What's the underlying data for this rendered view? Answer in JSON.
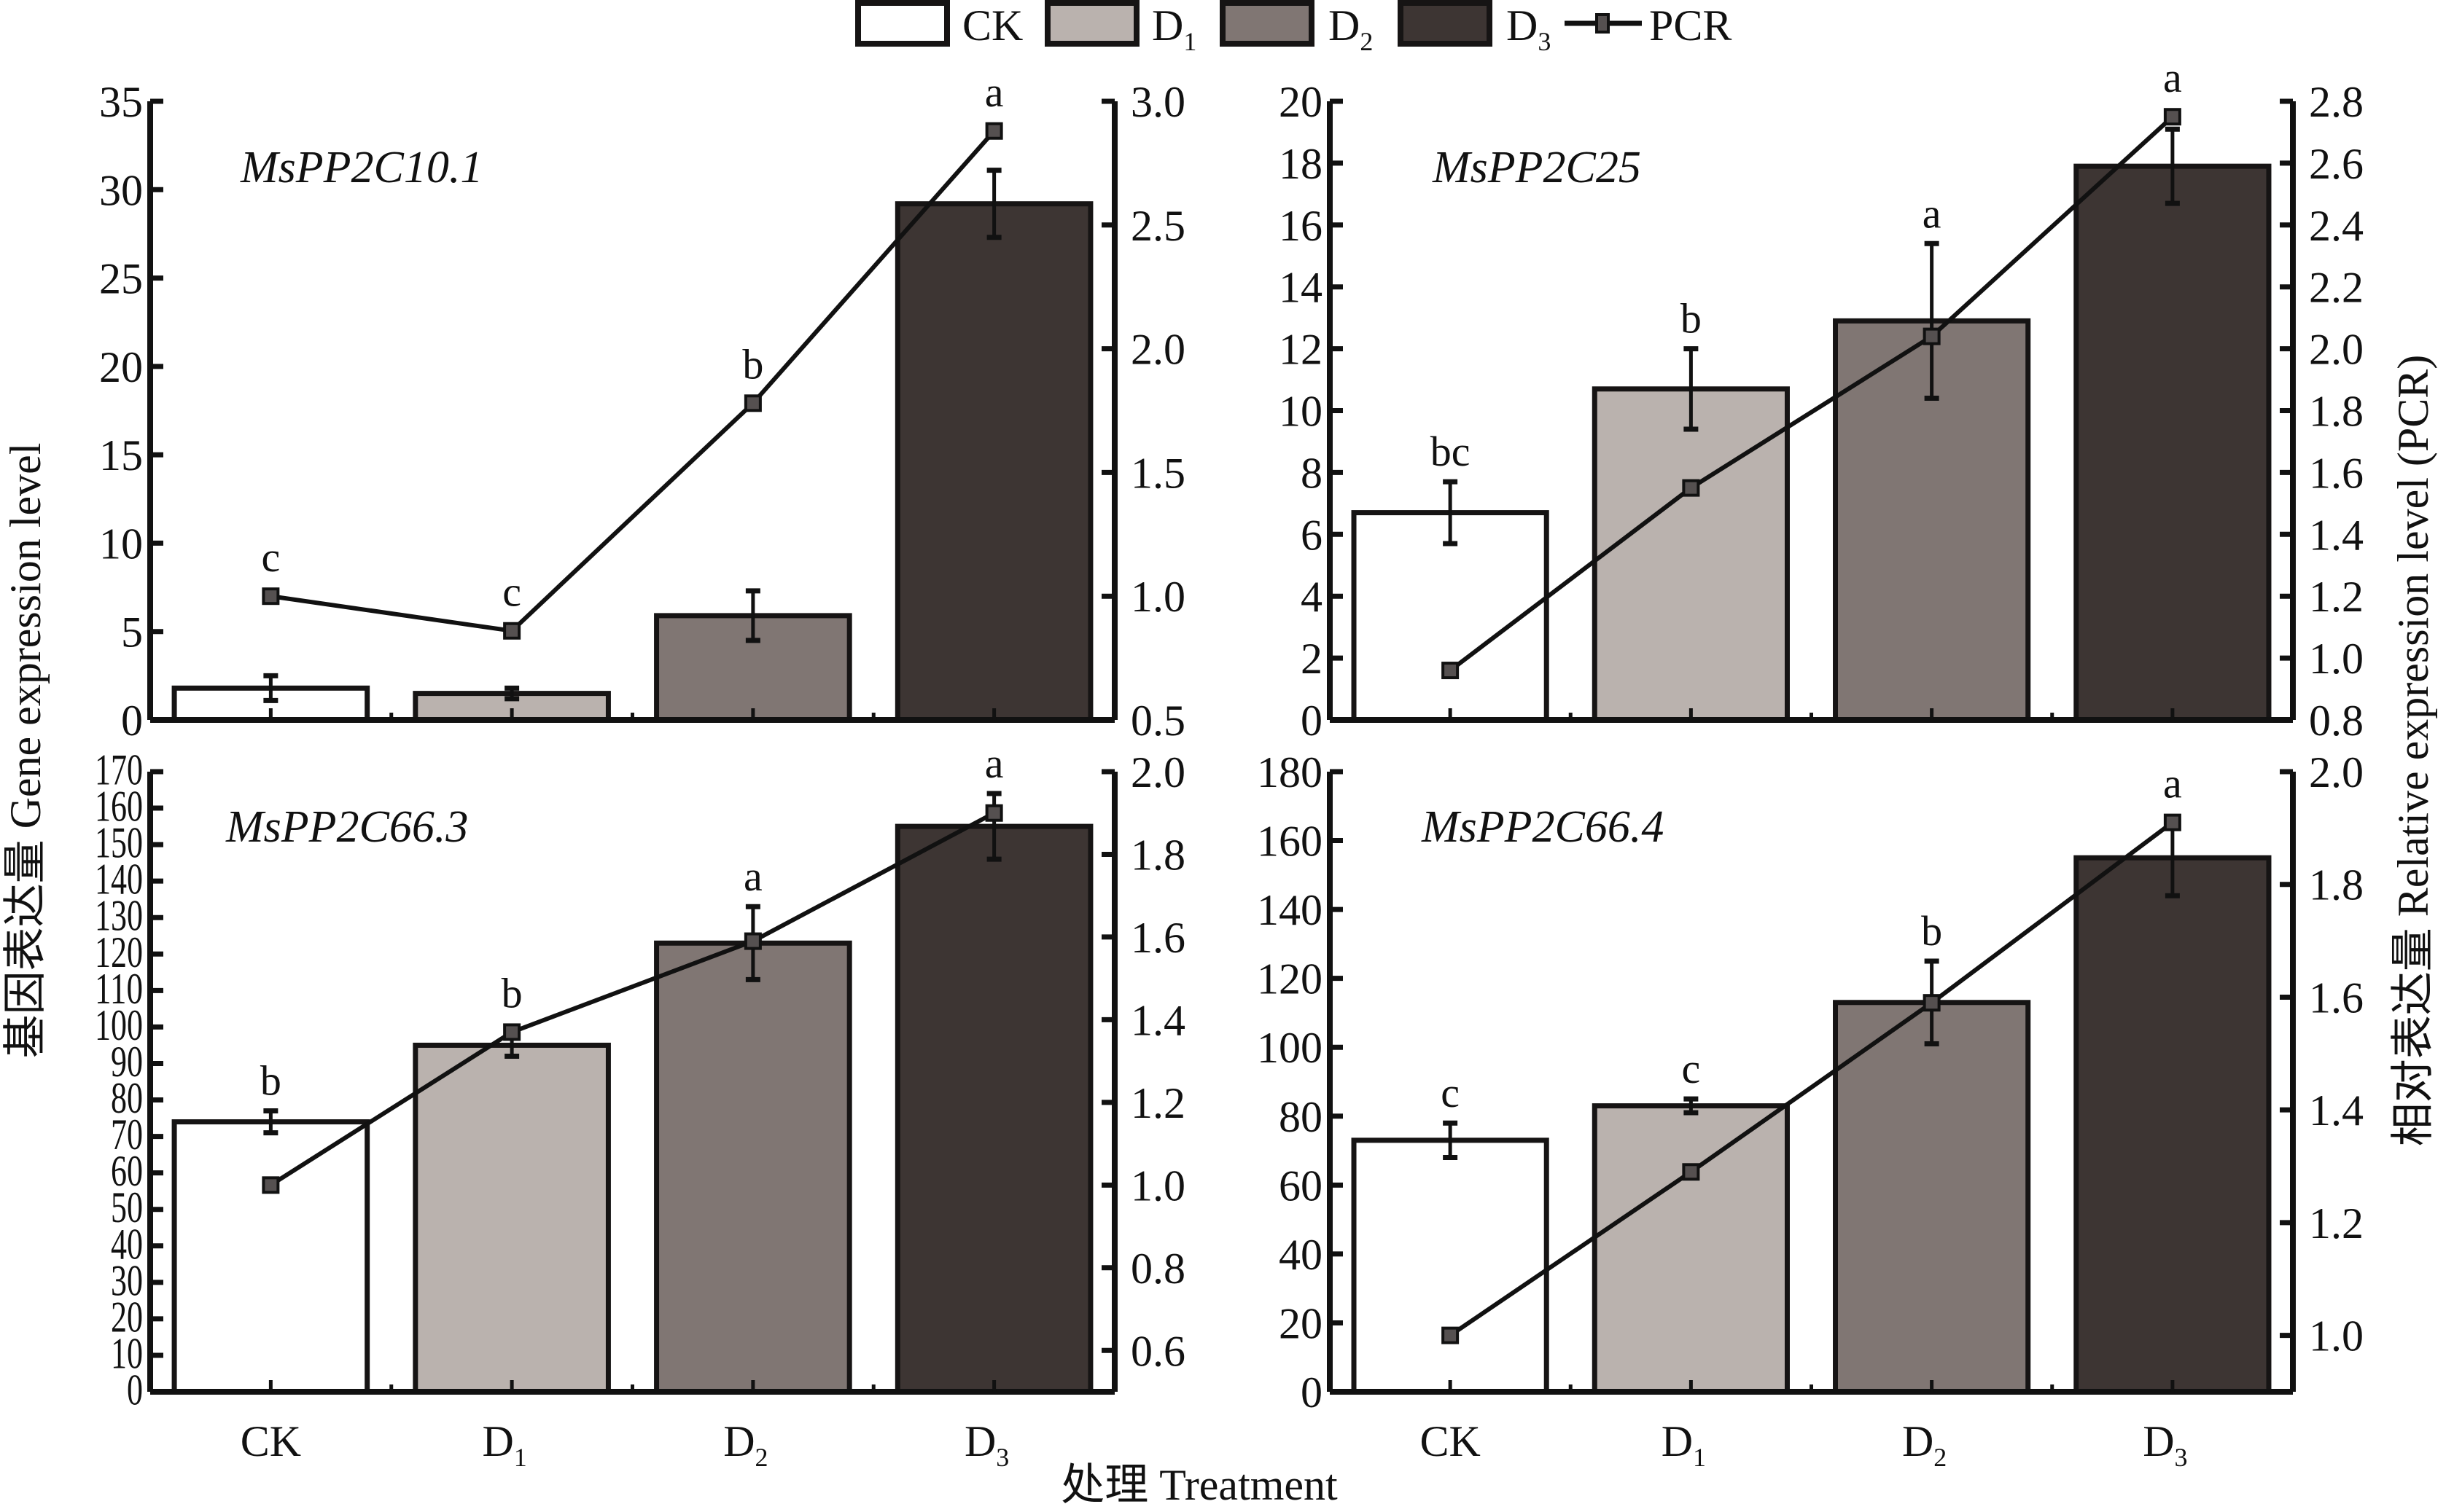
{
  "legend": {
    "items": [
      {
        "label": "CK",
        "sub": "",
        "color": "#ffffff"
      },
      {
        "label": "D",
        "sub": "1",
        "color": "#bab2ae"
      },
      {
        "label": "D",
        "sub": "2",
        "color": "#807673"
      },
      {
        "label": "D",
        "sub": "3",
        "color": "#3d3533"
      }
    ],
    "line_label": "PCR"
  },
  "axes": {
    "y_left_title": "基因表达量 Gene expression level",
    "y_right_title": "相对表达量 Relative expression level (PCR)",
    "x_title": "处理 Treatment"
  },
  "colors": {
    "CK": "#ffffff",
    "D1": "#bab2ae",
    "D2": "#807673",
    "D3": "#3d3533",
    "line": "#111111",
    "marker": "#555050",
    "stroke": "#161414"
  },
  "chart_data": [
    {
      "type": "bar",
      "title": "MsPP2C10.1",
      "categories": [
        {
          "label": "CK",
          "sub": ""
        },
        {
          "label": "D",
          "sub": "1"
        },
        {
          "label": "D",
          "sub": "2"
        },
        {
          "label": "D",
          "sub": "3"
        }
      ],
      "bars": {
        "name": "Gene expression level",
        "values": [
          1.8,
          1.5,
          5.9,
          29.2
        ],
        "errors": [
          0.7,
          0.3,
          1.4,
          1.9
        ]
      },
      "letters": [
        "c",
        "c",
        "b",
        "a"
      ],
      "line": {
        "name": "PCR",
        "values": [
          1.0,
          0.86,
          1.78,
          2.88
        ]
      },
      "ylim_left": [
        0,
        35
      ],
      "yticks_left": [
        "0",
        "5",
        "10",
        "15",
        "20",
        "25",
        "30",
        "35"
      ],
      "ylim_right": [
        0.5,
        3.0
      ],
      "yticks_right": [
        "0.5",
        "1.0",
        "1.5",
        "2.0",
        "2.5",
        "3.0"
      ],
      "show_x_labels": false
    },
    {
      "type": "bar",
      "title": "MsPP2C25",
      "categories": [
        {
          "label": "CK",
          "sub": ""
        },
        {
          "label": "D",
          "sub": "1"
        },
        {
          "label": "D",
          "sub": "2"
        },
        {
          "label": "D",
          "sub": "3"
        }
      ],
      "bars": {
        "name": "Gene expression level",
        "values": [
          6.7,
          10.7,
          12.9,
          17.9
        ],
        "errors": [
          1.0,
          1.3,
          2.5,
          1.2
        ]
      },
      "letters": [
        "bc",
        "b",
        "a",
        "a"
      ],
      "line": {
        "name": "PCR",
        "values": [
          0.96,
          1.55,
          2.04,
          2.75
        ]
      },
      "ylim_left": [
        0,
        20
      ],
      "yticks_left": [
        "0",
        "2",
        "4",
        "6",
        "8",
        "10",
        "12",
        "14",
        "16",
        "18",
        "20"
      ],
      "ylim_right": [
        0.8,
        2.8
      ],
      "yticks_right": [
        "0.8",
        "1.0",
        "1.2",
        "1.4",
        "1.6",
        "1.8",
        "2.0",
        "2.2",
        "2.4",
        "2.6",
        "2.8"
      ],
      "show_x_labels": false
    },
    {
      "type": "bar",
      "title": "MsPP2C66.3",
      "categories": [
        {
          "label": "CK",
          "sub": ""
        },
        {
          "label": "D",
          "sub": "1"
        },
        {
          "label": "D",
          "sub": "2"
        },
        {
          "label": "D",
          "sub": "3"
        }
      ],
      "bars": {
        "name": "Gene expression level",
        "values": [
          74,
          95,
          123,
          155
        ],
        "errors": [
          3,
          3,
          10,
          9
        ]
      },
      "letters": [
        "b",
        "b",
        "a",
        "a"
      ],
      "line": {
        "name": "PCR",
        "values": [
          1.0,
          1.37,
          1.59,
          1.9
        ]
      },
      "ylim_left": [
        0,
        170
      ],
      "yticks_left": [
        "0",
        "10",
        "20",
        "30",
        "40",
        "50",
        "60",
        "70",
        "80",
        "90",
        "100",
        "110",
        "120",
        "130",
        "140",
        "150",
        "160",
        "170"
      ],
      "ylim_right": [
        0.5,
        2.0
      ],
      "yticks_right": [
        "0.6",
        "0.8",
        "1.0",
        "1.2",
        "1.4",
        "1.6",
        "1.8",
        "2.0"
      ],
      "show_x_labels": true
    },
    {
      "type": "bar",
      "title": "MsPP2C66.4",
      "categories": [
        {
          "label": "CK",
          "sub": ""
        },
        {
          "label": "D",
          "sub": "1"
        },
        {
          "label": "D",
          "sub": "2"
        },
        {
          "label": "D",
          "sub": "3"
        }
      ],
      "bars": {
        "name": "Gene expression level",
        "values": [
          73,
          83,
          113,
          155
        ],
        "errors": [
          5,
          2,
          12,
          11
        ]
      },
      "letters": [
        "c",
        "c",
        "b",
        "a"
      ],
      "line": {
        "name": "PCR",
        "values": [
          1.0,
          1.29,
          1.59,
          1.91
        ]
      },
      "ylim_left": [
        0,
        180
      ],
      "yticks_left": [
        "0",
        "20",
        "40",
        "60",
        "80",
        "100",
        "120",
        "140",
        "160",
        "180"
      ],
      "ylim_right": [
        0.9,
        2.0
      ],
      "yticks_right": [
        "1.0",
        "1.2",
        "1.4",
        "1.6",
        "1.8",
        "2.0"
      ],
      "show_x_labels": true
    }
  ]
}
